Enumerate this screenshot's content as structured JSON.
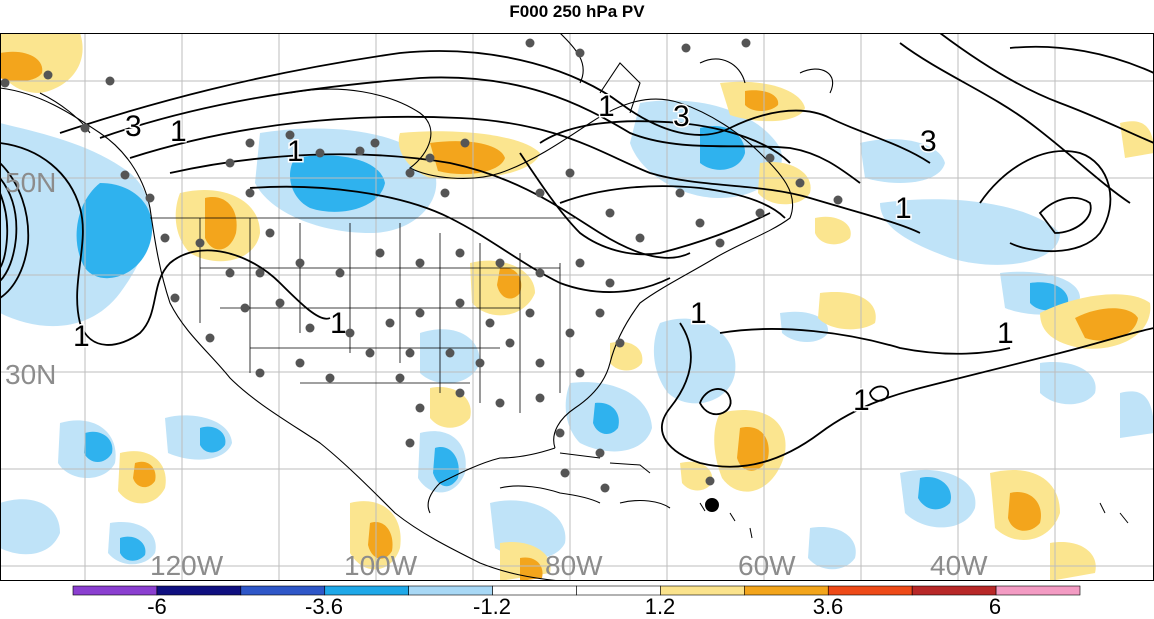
{
  "title": "F000 250 hPa PV",
  "lat_labels": [
    "50N",
    "30N"
  ],
  "lon_labels": [
    "120W",
    "100W",
    "80W",
    "60W",
    "40W"
  ],
  "contour_labels": [
    "3",
    "1",
    "1",
    "3",
    "1",
    "1",
    "1",
    "3",
    "1",
    "1",
    "1",
    "1"
  ],
  "colorbar": {
    "tick_labels": [
      "-6",
      "-3.6",
      "-1.2",
      "1.2",
      "3.6",
      "6"
    ],
    "colors": [
      "#8b3fd0",
      "#101080",
      "#2f57c8",
      "#1fa8e8",
      "#a8d8f5",
      "#ffffff",
      "#ffffff",
      "#fbe38c",
      "#f3a51c",
      "#ee4a18",
      "#b82828",
      "#f39bc3"
    ]
  },
  "palette": {
    "light_blue": "#bfe3f8",
    "mid_blue": "#2fb2ee",
    "light_yellow": "#fbe58f",
    "orange": "#f3a51c",
    "grid": "#bdbdbd",
    "coast": "#000000",
    "station": "#555555",
    "marker": "#000000"
  }
}
